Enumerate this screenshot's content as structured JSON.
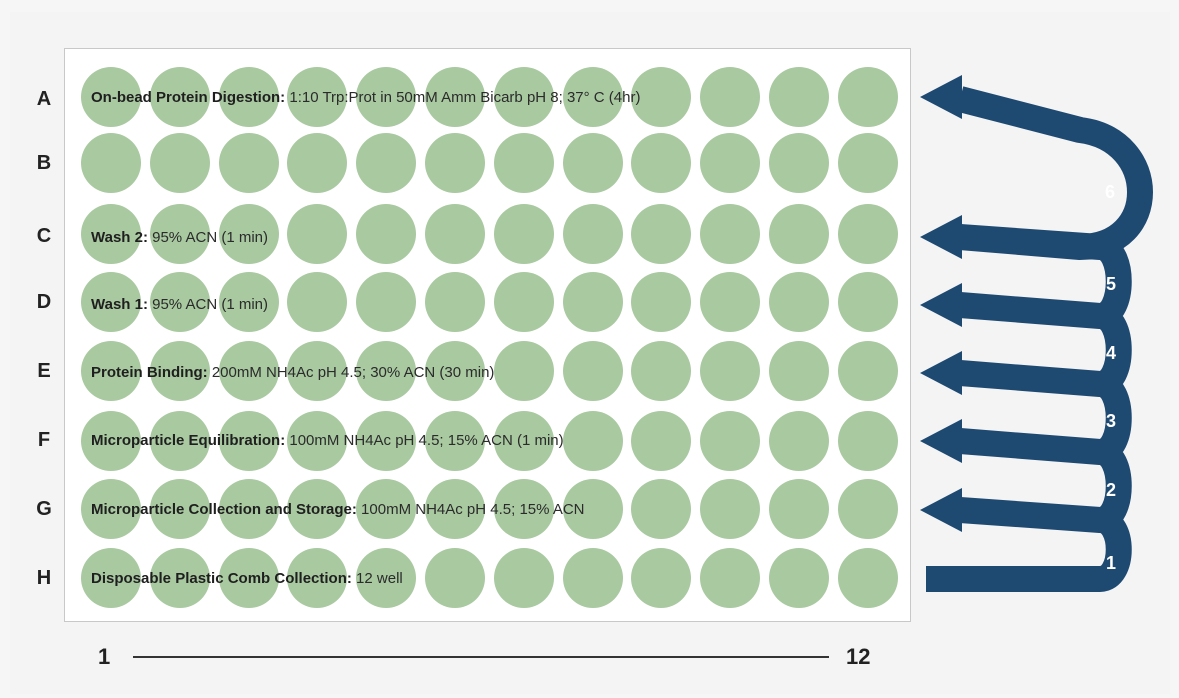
{
  "rows": [
    {
      "letter": "A",
      "title": "On-bead Protein Digestion:",
      "detail": " 1:10 Trp:Prot in 50mM Amm Bicarb pH 8; 37° C (4hr)"
    },
    {
      "letter": "B",
      "title": "",
      "detail": ""
    },
    {
      "letter": "C",
      "title": "Wash 2:",
      "detail": " 95% ACN (1 min)"
    },
    {
      "letter": "D",
      "title": "Wash 1:",
      "detail": " 95% ACN (1 min)"
    },
    {
      "letter": "E",
      "title": "Protein Binding:",
      "detail": " 200mM NH4Ac pH 4.5; 30% ACN  (30 min)"
    },
    {
      "letter": "F",
      "title": "Microparticle Equilibration:",
      "detail": " 100mM NH4Ac pH 4.5; 15% ACN  (1 min)"
    },
    {
      "letter": "G",
      "title": "Microparticle Collection and Storage:",
      "detail": " 100mM NH4Ac pH 4.5; 15% ACN"
    },
    {
      "letter": "H",
      "title": "Disposable Plastic Comb Collection:",
      "detail": " 12 well"
    }
  ],
  "columns": {
    "start_label": "1",
    "end_label": "12",
    "count": 12
  },
  "steps": [
    "1",
    "2",
    "3",
    "4",
    "5",
    "6"
  ],
  "colors": {
    "well": "#a9c9a0",
    "arrow": "#1e4a72",
    "plate_border": "#c8c8c8"
  }
}
